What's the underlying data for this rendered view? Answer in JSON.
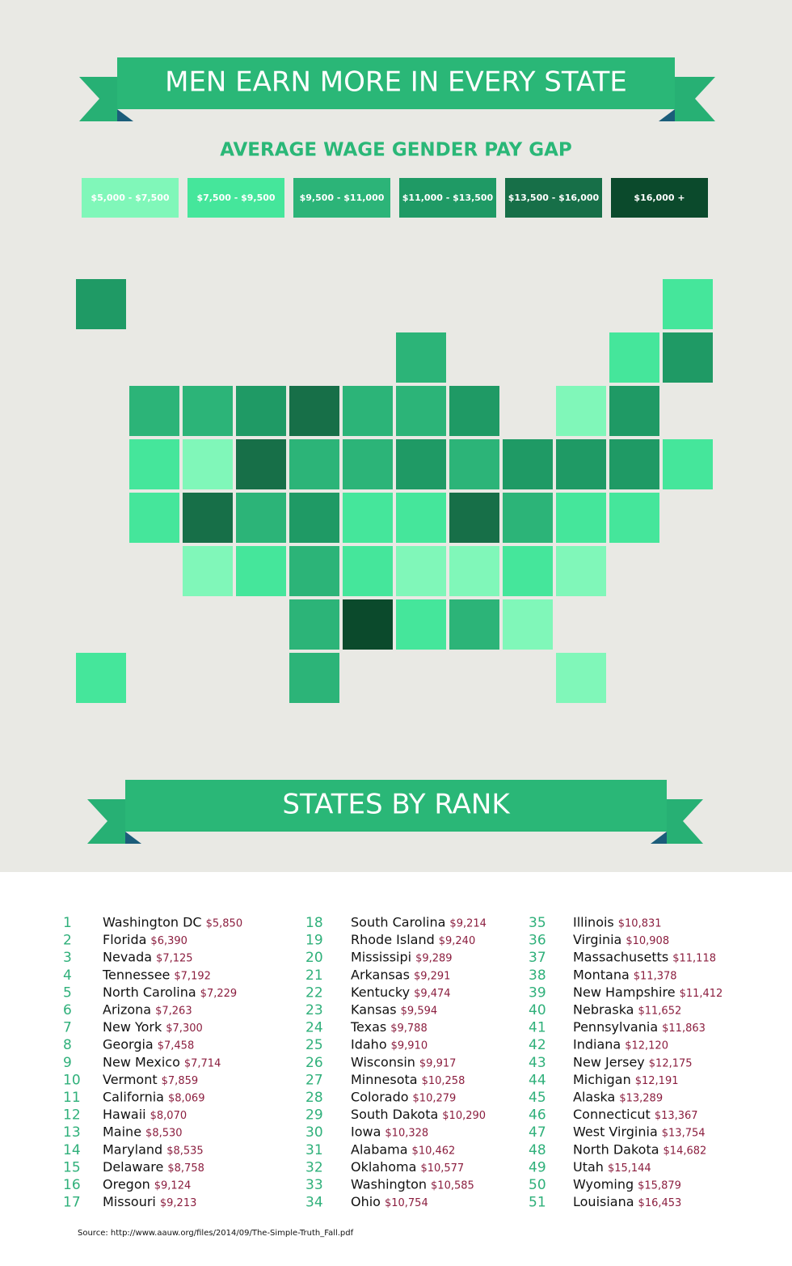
{
  "title": "MEN EARN MORE IN EVERY STATE",
  "subtitle": "AVERAGE WAGE GENDER PAY GAP",
  "legend": [
    {
      "label": "$5,000 - $7,500",
      "color": "#80f7b9"
    },
    {
      "label": "$7,500 - $9,500",
      "color": "#45e69b"
    },
    {
      "label": "$9,500 - $11,000",
      "color": "#2cb478"
    },
    {
      "label": "$11,000 - $13,500",
      "color": "#1f9a65"
    },
    {
      "label": "$13,500 - $16,000",
      "color": "#176f48"
    },
    {
      "label": "$16,000 +",
      "color": "#0b4a2c"
    }
  ],
  "rank_title": "STATES BY RANK",
  "rankings": [
    [
      1,
      "Washington DC",
      "$5,850"
    ],
    [
      2,
      "Florida",
      "$6,390"
    ],
    [
      3,
      "Nevada",
      "$7,125"
    ],
    [
      4,
      "Tennessee",
      "$7,192"
    ],
    [
      5,
      "North Carolina",
      "$7,229"
    ],
    [
      6,
      "Arizona",
      "$7,263"
    ],
    [
      7,
      "New York",
      "$7,300"
    ],
    [
      8,
      "Georgia",
      "$7,458"
    ],
    [
      9,
      "New Mexico",
      "$7,714"
    ],
    [
      10,
      "Vermont",
      "$7,859"
    ],
    [
      11,
      "California",
      "$8,069"
    ],
    [
      12,
      "Hawaii",
      "$8,070"
    ],
    [
      13,
      "Maine",
      "$8,530"
    ],
    [
      14,
      "Maryland",
      "$8,535"
    ],
    [
      15,
      "Delaware",
      "$8,758"
    ],
    [
      16,
      "Oregon",
      "$9,124"
    ],
    [
      17,
      "Missouri",
      "$9,213"
    ],
    [
      18,
      "South Carolina",
      "$9,214"
    ],
    [
      19,
      "Rhode Island",
      "$9,240"
    ],
    [
      20,
      "Mississipi",
      "$9,289"
    ],
    [
      21,
      "Arkansas",
      "$9,291"
    ],
    [
      22,
      "Kentucky",
      "$9,474"
    ],
    [
      23,
      "Kansas",
      "$9,594"
    ],
    [
      24,
      "Texas",
      "$9,788"
    ],
    [
      25,
      "Idaho",
      "$9,910"
    ],
    [
      26,
      "Wisconsin",
      "$9,917"
    ],
    [
      27,
      "Minnesota",
      "$10,258"
    ],
    [
      28,
      "Colorado",
      "$10,279"
    ],
    [
      29,
      "South Dakota",
      "$10,290"
    ],
    [
      30,
      "Iowa",
      "$10,328"
    ],
    [
      31,
      "Alabama",
      "$10,462"
    ],
    [
      32,
      "Oklahoma",
      "$10,577"
    ],
    [
      33,
      "Washington",
      "$10,585"
    ],
    [
      34,
      "Ohio",
      "$10,754"
    ],
    [
      35,
      "Illinois",
      "$10,831"
    ],
    [
      36,
      "Virginia",
      "$10,908"
    ],
    [
      37,
      "Massachusetts",
      "$11,118"
    ],
    [
      38,
      "Montana",
      "$11,378"
    ],
    [
      39,
      "New Hampshire",
      "$11,412"
    ],
    [
      40,
      "Nebraska",
      "$11,652"
    ],
    [
      41,
      "Pennsylvania",
      "$11,863"
    ],
    [
      42,
      "Indiana",
      "$12,120"
    ],
    [
      43,
      "New Jersey",
      "$12,175"
    ],
    [
      44,
      "Michigan",
      "$12,191"
    ],
    [
      45,
      "Alaska",
      "$13,289"
    ],
    [
      46,
      "Connecticut",
      "$13,367"
    ],
    [
      47,
      "West Virginia",
      "$13,754"
    ],
    [
      48,
      "North Dakota",
      "$14,682"
    ],
    [
      49,
      "Utah",
      "$15,144"
    ],
    [
      50,
      "Wyoming",
      "$15,879"
    ],
    [
      51,
      "Louisiana",
      "$16,453"
    ]
  ],
  "source": "Source: http://www.aauw.org/files/2014/09/The-Simple-Truth_Fall.pdf"
}
